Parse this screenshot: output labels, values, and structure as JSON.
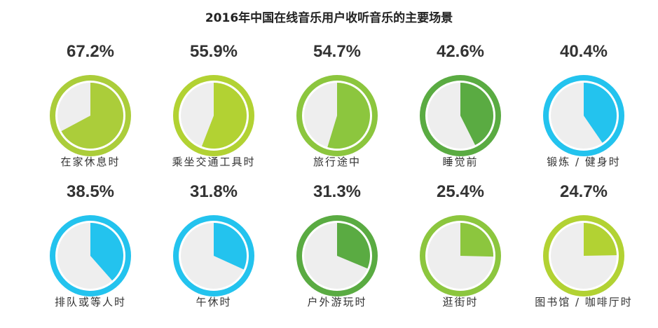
{
  "title": "2016年中国在线音乐用户收听音乐的主要场景",
  "chart_data": {
    "type": "pie",
    "title": "2016年中国在线音乐用户收听音乐的主要场景",
    "items": [
      {
        "label": "在家休息时",
        "value": 67.2,
        "value_text": "67.2%",
        "color": "#abcd3a"
      },
      {
        "label": "乘坐交通工具时",
        "value": 55.9,
        "value_text": "55.9%",
        "color": "#b2d233"
      },
      {
        "label": "旅行途中",
        "value": 54.7,
        "value_text": "54.7%",
        "color": "#8cc63e"
      },
      {
        "label": "睡觉前",
        "value": 42.6,
        "value_text": "42.6%",
        "color": "#5aab42"
      },
      {
        "label": "锻炼 / 健身时",
        "value": 40.4,
        "value_text": "40.4%",
        "color": "#23c3ee"
      },
      {
        "label": "排队或等人时",
        "value": 38.5,
        "value_text": "38.5%",
        "color": "#23c3ee"
      },
      {
        "label": "午休时",
        "value": 31.8,
        "value_text": "31.8%",
        "color": "#23c3ee"
      },
      {
        "label": "户外游玩时",
        "value": 31.3,
        "value_text": "31.3%",
        "color": "#5aab42"
      },
      {
        "label": "逛街时",
        "value": 25.4,
        "value_text": "25.4%",
        "color": "#8cc63e"
      },
      {
        "label": "图书馆 / 咖啡厅时",
        "value": 24.7,
        "value_text": "24.7%",
        "color": "#b2d233"
      }
    ],
    "ylim": [
      0,
      100
    ]
  }
}
